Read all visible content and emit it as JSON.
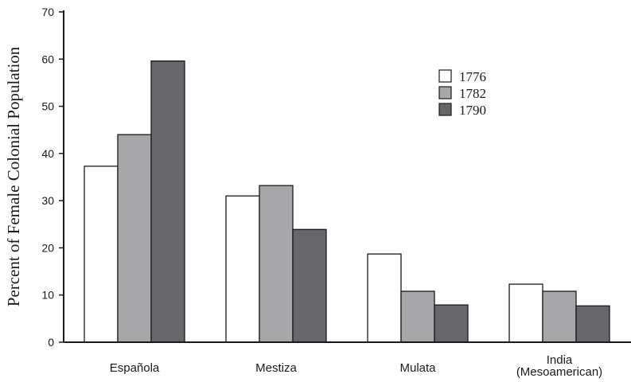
{
  "chart_data": {
    "type": "bar",
    "title": "",
    "xlabel": "",
    "ylabel": "Percent of Female Colonial Population",
    "ylim": [
      0,
      70
    ],
    "yticks": [
      0,
      10,
      20,
      30,
      40,
      50,
      60,
      70
    ],
    "grid": false,
    "legend_position": "top-right",
    "categories": [
      [
        "Española"
      ],
      [
        "Mestiza"
      ],
      [
        "Mulata"
      ],
      [
        "India",
        "(Mesoamerican)"
      ]
    ],
    "series": [
      {
        "name": "1776",
        "color": "#ffffff",
        "values": [
          37.3,
          31.0,
          18.7,
          12.3
        ]
      },
      {
        "name": "1782",
        "color": "#a7a7aa",
        "values": [
          44.0,
          33.2,
          10.8,
          10.8
        ]
      },
      {
        "name": "1790",
        "color": "#67676b",
        "values": [
          59.6,
          23.9,
          7.9,
          7.7
        ]
      }
    ]
  }
}
